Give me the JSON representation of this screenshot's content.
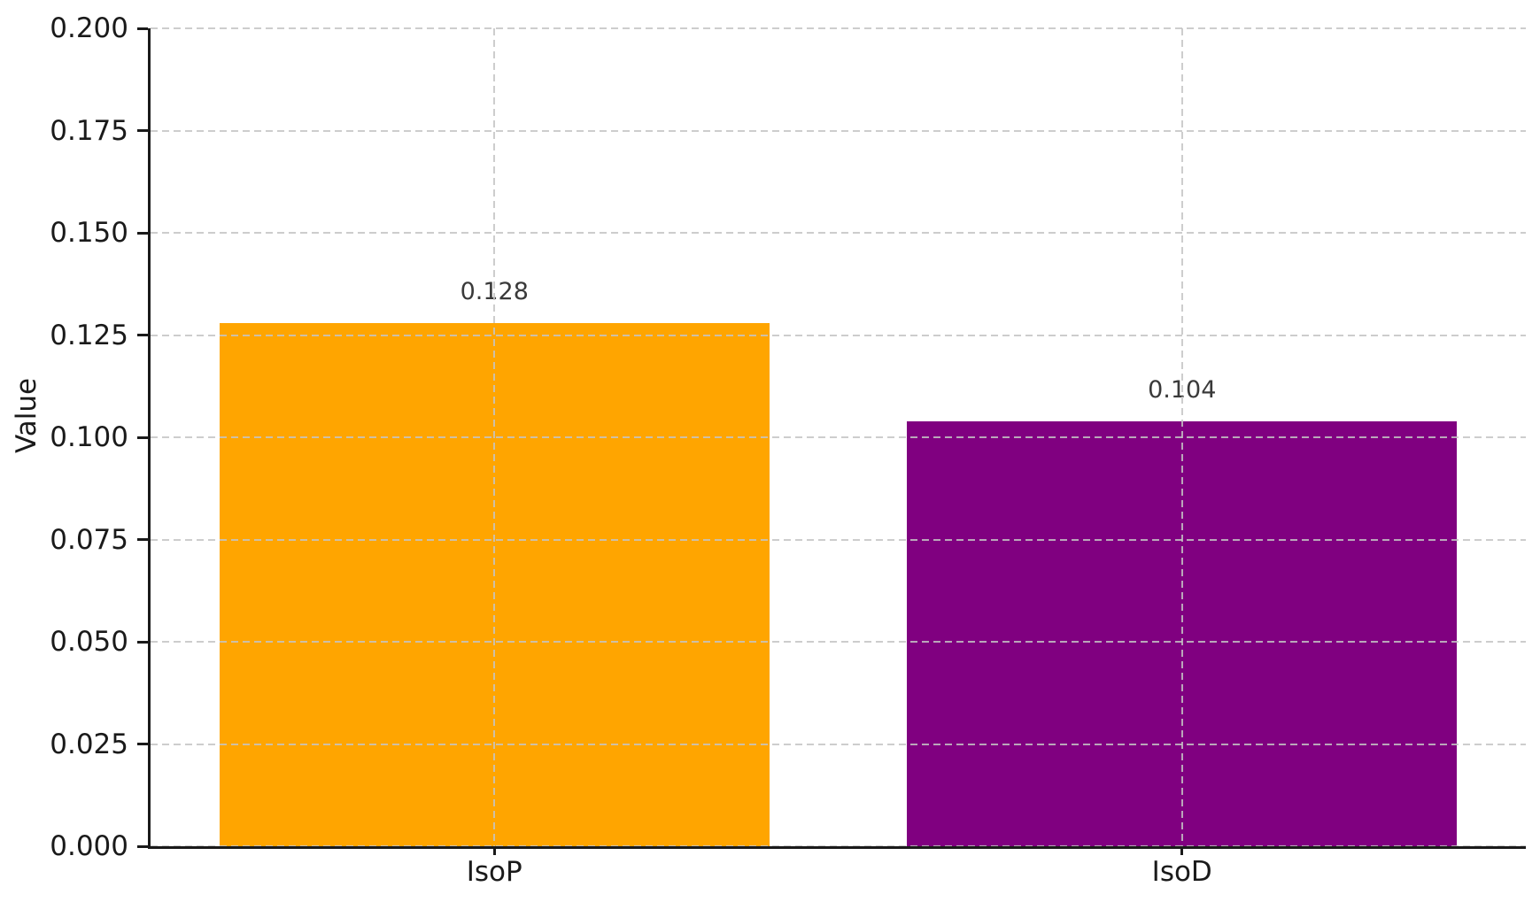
{
  "chart_data": {
    "type": "bar",
    "categories": [
      "IsoP",
      "IsoD"
    ],
    "values": [
      0.128,
      0.104
    ],
    "value_labels": [
      "0.128",
      "0.104"
    ],
    "bar_colors": [
      "#FFA500",
      "#800080"
    ],
    "title": "",
    "xlabel": "",
    "ylabel": "Value",
    "ylim": [
      0.0,
      0.2
    ],
    "yticks": [
      0.0,
      0.025,
      0.05,
      0.075,
      0.1,
      0.125,
      0.15,
      0.175,
      0.2
    ],
    "ytick_labels": [
      "0.000",
      "0.025",
      "0.050",
      "0.075",
      "0.100",
      "0.125",
      "0.150",
      "0.175",
      "0.200"
    ],
    "grid": "both-dashed",
    "legend_position": "none"
  },
  "colors": {
    "bar_isop": "#FFA500",
    "bar_isod": "#800080",
    "grid": "#c4c4c4",
    "axis": "#1a1a1a",
    "tick_label": "#1a1a1a",
    "value_label": "#3a3a3a",
    "background": "#ffffff"
  }
}
